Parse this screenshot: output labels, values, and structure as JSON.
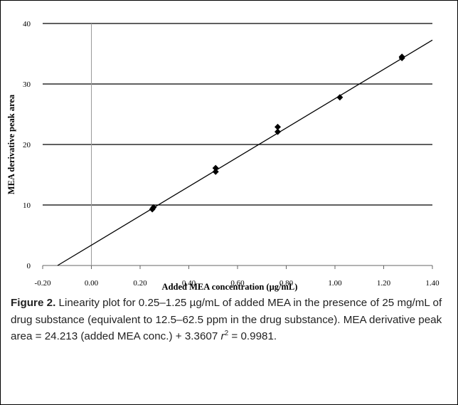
{
  "chart_data": {
    "type": "scatter",
    "xlabel": "Added MEA concentration (µg/mL)",
    "ylabel": "MEA derivative peak area",
    "xlim": [
      -0.2,
      1.4
    ],
    "ylim": [
      0,
      40
    ],
    "x_ticks": [
      "-0.20",
      "0.00",
      "0.20",
      "0.40",
      "0.60",
      "0.80",
      "1.00",
      "1.20",
      "1.40"
    ],
    "y_ticks": [
      "0",
      "10",
      "20",
      "30",
      "40"
    ],
    "grid": "horizontal",
    "points": [
      {
        "x": 0.25,
        "y": 9.3
      },
      {
        "x": 0.255,
        "y": 9.6
      },
      {
        "x": 0.51,
        "y": 15.5
      },
      {
        "x": 0.51,
        "y": 16.1
      },
      {
        "x": 0.765,
        "y": 22.1
      },
      {
        "x": 0.765,
        "y": 22.9
      },
      {
        "x": 1.02,
        "y": 27.8
      },
      {
        "x": 1.275,
        "y": 34.3
      },
      {
        "x": 1.275,
        "y": 34.5
      }
    ],
    "fit": {
      "slope": 24.213,
      "intercept": 3.3607
    }
  },
  "caption": {
    "label": "Figure 2.",
    "text": "Linearity plot for 0.25–1.25 µg/mL of added MEA in the presence of 25 mg/mL of drug substance (equivalent to 12.5–62.5 ppm in the drug substance). MEA derivative peak area = 24.213 (added MEA conc.) + 3.3607 ",
    "r_symbol": "r",
    "r_exponent": "2",
    "r_value": " = 0.9981."
  }
}
